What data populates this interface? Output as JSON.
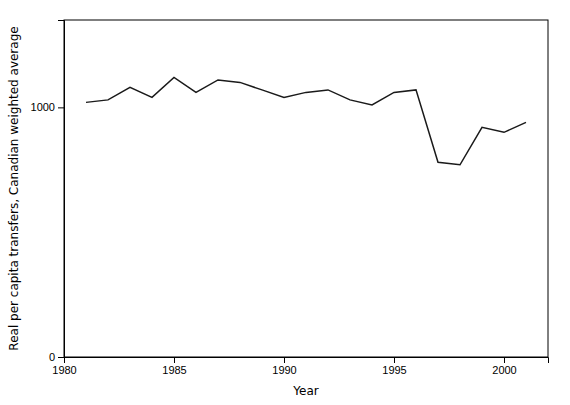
{
  "chart_data": {
    "type": "line",
    "x": [
      1981,
      1982,
      1983,
      1984,
      1985,
      1986,
      1987,
      1988,
      1989,
      1990,
      1991,
      1992,
      1993,
      1994,
      1995,
      1996,
      1997,
      1998,
      1999,
      2000,
      2001
    ],
    "values": [
      1020,
      1030,
      1080,
      1040,
      1120,
      1060,
      1110,
      1100,
      1070,
      1040,
      1060,
      1070,
      1030,
      1010,
      1060,
      1070,
      780,
      770,
      920,
      900,
      940
    ],
    "color": "#1a1a1a",
    "xlabel": "Year",
    "ylabel": "Real per capita transfers, Canadian weighted average",
    "xlim": [
      1980,
      2002
    ],
    "ylim": [
      0,
      1350
    ],
    "xticks": [
      1980,
      1985,
      1990,
      1995,
      2000
    ],
    "yticks": [
      0,
      1000
    ],
    "grid": false
  }
}
